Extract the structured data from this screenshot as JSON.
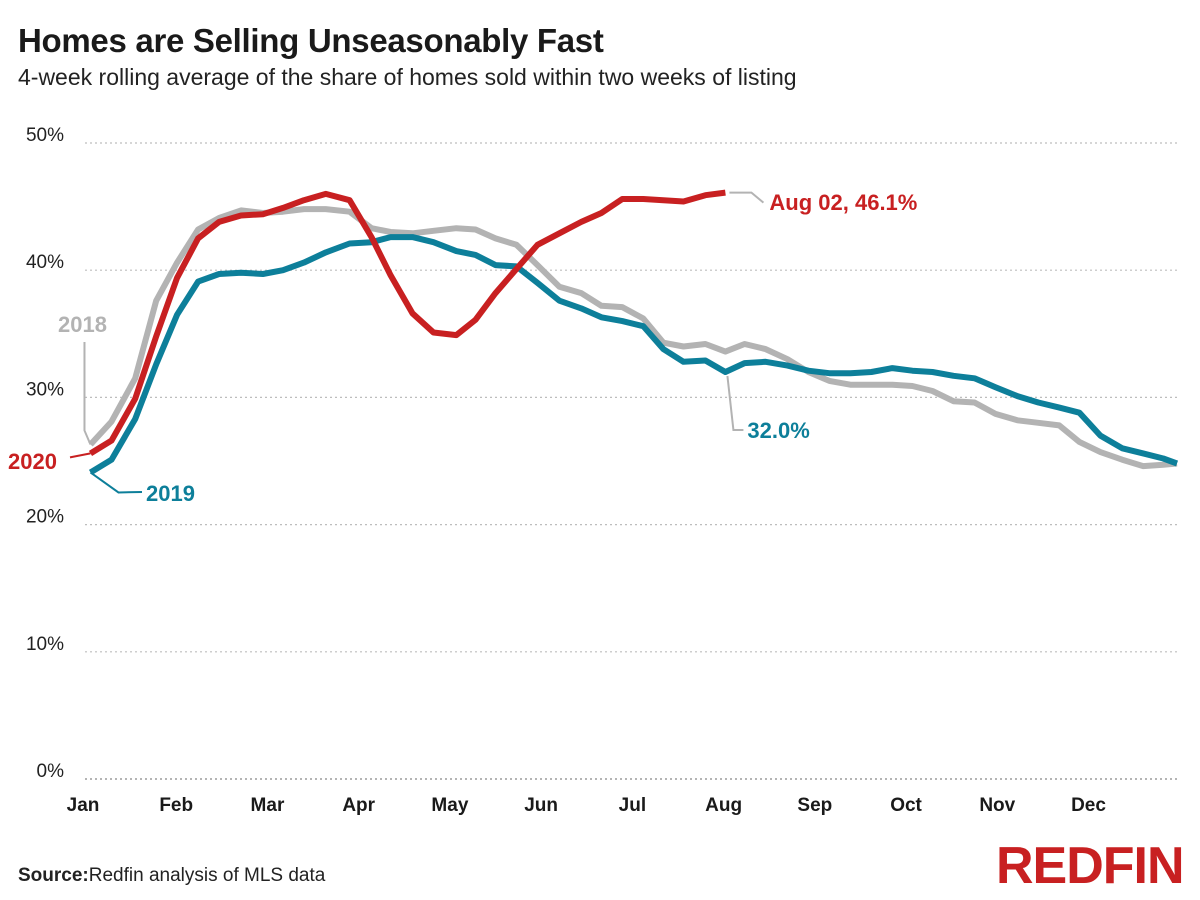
{
  "chart_data": {
    "type": "line",
    "title": "Homes are Selling Unseasonably Fast",
    "subtitle": "4-week rolling average of the share of homes sold within two weeks of listing",
    "ylabel": "",
    "xlabel": "",
    "ylim": [
      0,
      50
    ],
    "yticks": [
      0,
      10,
      20,
      30,
      40,
      50
    ],
    "ytick_labels": [
      "0%",
      "10%",
      "20%",
      "30%",
      "40%",
      "50%"
    ],
    "xticks": [
      1,
      2,
      3,
      4,
      5,
      6,
      7,
      8,
      9,
      10,
      11,
      12
    ],
    "xtick_labels": [
      "Jan",
      "Feb",
      "Mar",
      "Apr",
      "May",
      "Jun",
      "Jul",
      "Aug",
      "Sep",
      "Oct",
      "Nov",
      "Dec"
    ],
    "xlim": [
      1,
      12.97
    ],
    "grid": "horizontal dotted",
    "series": [
      {
        "name": "2018",
        "color": "#b3b3b3",
        "x": [
          1.06,
          1.29,
          1.55,
          1.78,
          2.01,
          2.24,
          2.47,
          2.71,
          2.95,
          3.17,
          3.4,
          3.64,
          3.9,
          4.14,
          4.35,
          4.59,
          4.82,
          5.07,
          5.28,
          5.5,
          5.73,
          5.96,
          6.2,
          6.44,
          6.66,
          6.89,
          7.12,
          7.34,
          7.56,
          7.8,
          8.02,
          8.23,
          8.46,
          8.7,
          8.93,
          9.16,
          9.39,
          9.62,
          9.85,
          10.07,
          10.29,
          10.52,
          10.75,
          10.98,
          11.22,
          11.45,
          11.68,
          11.9,
          12.13,
          12.37,
          12.6,
          12.82,
          12.97
        ],
        "y": [
          26.3,
          28.1,
          31.5,
          37.6,
          40.6,
          43.2,
          44.1,
          44.7,
          44.5,
          44.6,
          44.8,
          44.8,
          44.6,
          43.3,
          43.0,
          42.9,
          43.1,
          43.3,
          43.2,
          42.5,
          42.0,
          40.4,
          38.7,
          38.2,
          37.2,
          37.1,
          36.2,
          34.3,
          34.0,
          34.2,
          33.6,
          34.2,
          33.8,
          33.0,
          32.0,
          31.3,
          31.0,
          31.0,
          31.0,
          30.9,
          30.5,
          29.7,
          29.6,
          28.7,
          28.2,
          28.0,
          27.8,
          26.5,
          25.7,
          25.1,
          24.6,
          24.7,
          24.8
        ],
        "label": "2018"
      },
      {
        "name": "2019",
        "color": "#0d7f9a",
        "x": [
          1.06,
          1.29,
          1.55,
          1.78,
          2.01,
          2.24,
          2.47,
          2.71,
          2.95,
          3.17,
          3.4,
          3.64,
          3.9,
          4.14,
          4.35,
          4.59,
          4.82,
          5.07,
          5.28,
          5.5,
          5.73,
          5.96,
          6.2,
          6.44,
          6.66,
          6.89,
          7.12,
          7.34,
          7.56,
          7.8,
          8.02,
          8.23,
          8.46,
          8.7,
          8.93,
          9.16,
          9.39,
          9.62,
          9.85,
          10.07,
          10.29,
          10.52,
          10.75,
          10.98,
          11.22,
          11.45,
          11.68,
          11.9,
          12.13,
          12.37,
          12.6,
          12.82,
          12.97
        ],
        "y": [
          24.1,
          25.1,
          28.3,
          32.6,
          36.5,
          39.1,
          39.7,
          39.8,
          39.7,
          40.0,
          40.6,
          41.4,
          42.1,
          42.2,
          42.6,
          42.6,
          42.2,
          41.5,
          41.2,
          40.4,
          40.3,
          39.0,
          37.6,
          37.0,
          36.3,
          36.0,
          35.6,
          33.8,
          32.8,
          32.9,
          32.0,
          32.7,
          32.8,
          32.5,
          32.1,
          31.9,
          31.9,
          32.0,
          32.3,
          32.1,
          32.0,
          31.7,
          31.5,
          30.8,
          30.1,
          29.6,
          29.2,
          28.8,
          27.0,
          26.0,
          25.6,
          25.2,
          24.8
        ],
        "label": "2019",
        "end_label": "32.0%"
      },
      {
        "name": "2020",
        "color": "#c82021",
        "x": [
          1.06,
          1.29,
          1.55,
          1.78,
          2.01,
          2.24,
          2.47,
          2.71,
          2.95,
          3.17,
          3.4,
          3.64,
          3.9,
          4.14,
          4.35,
          4.59,
          4.82,
          5.07,
          5.28,
          5.5,
          5.73,
          5.96,
          6.2,
          6.44,
          6.66,
          6.89,
          7.12,
          7.34,
          7.56,
          7.8,
          8.02
        ],
        "y": [
          25.6,
          26.6,
          29.9,
          34.8,
          39.4,
          42.5,
          43.8,
          44.3,
          44.4,
          44.9,
          45.5,
          46.0,
          45.5,
          42.6,
          39.6,
          36.6,
          35.1,
          34.9,
          36.1,
          38.2,
          40.1,
          42.0,
          42.9,
          43.8,
          44.5,
          45.6,
          45.6,
          45.5,
          45.4,
          45.9,
          46.1
        ],
        "label": "2020",
        "end_label": "Aug 02, 46.1%"
      }
    ],
    "source_label": "Source:",
    "source_text": "Redfin analysis of MLS data",
    "brand": "REDFIN"
  }
}
